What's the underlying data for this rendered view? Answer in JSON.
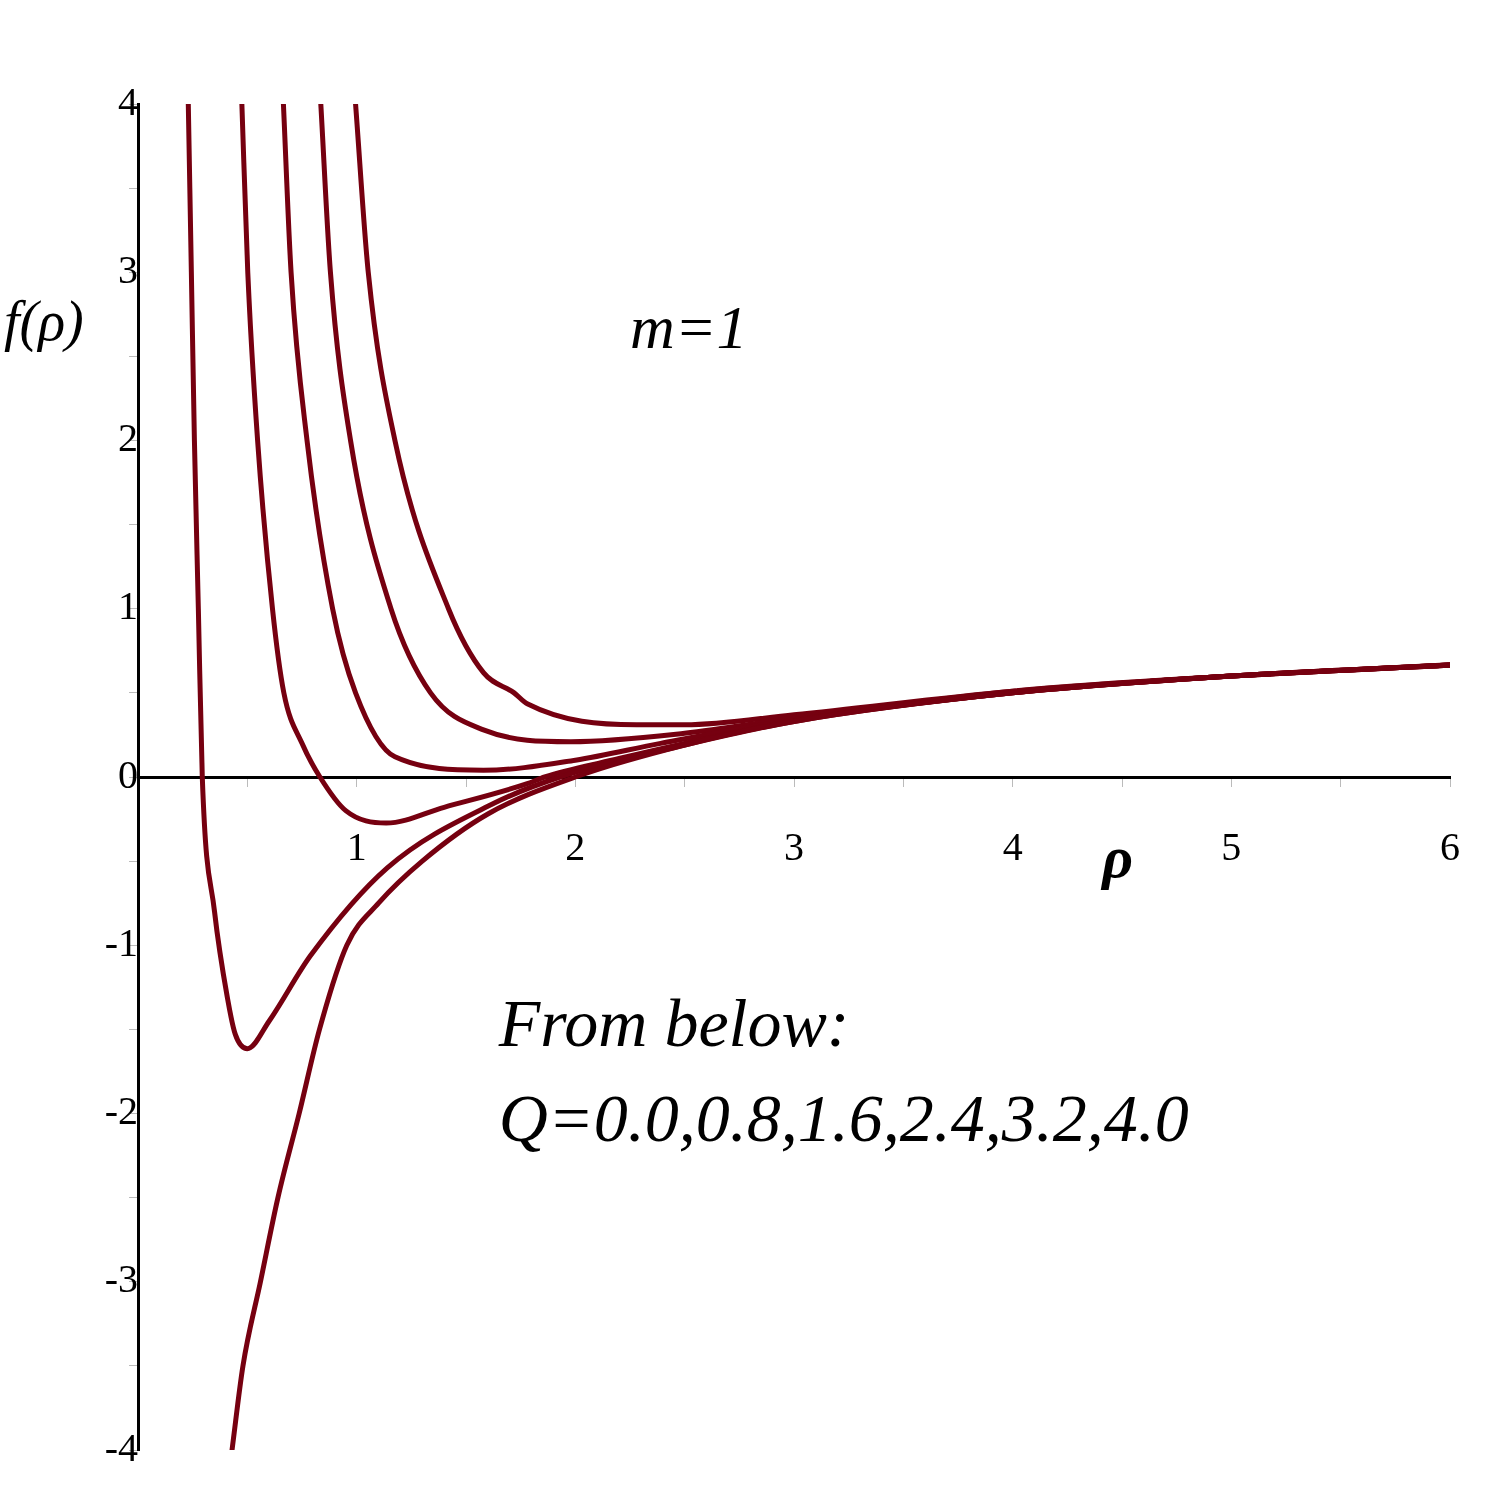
{
  "chart_data": {
    "type": "line",
    "xlabel": "ρ",
    "ylabel": "f(ρ)",
    "annotations": [
      "m=1",
      "From below:",
      "Q=0.0,0.8,1.6,2.4,3.2,4.0"
    ],
    "xlim": [
      0,
      6
    ],
    "ylim": [
      -4,
      4
    ],
    "xticks": [
      {
        "value": 0.5,
        "label": null
      },
      1,
      {
        "value": 1.5,
        "label": null
      },
      2,
      {
        "value": 2.5,
        "label": null
      },
      3,
      {
        "value": 3.5,
        "label": null
      },
      4,
      {
        "value": 4.5,
        "label": null
      },
      5,
      {
        "value": 5.5,
        "label": null
      },
      6
    ],
    "yticks": [
      -4,
      {
        "value": -3.5,
        "label": null
      },
      -3,
      {
        "value": -2.5,
        "label": null
      },
      -2,
      {
        "value": -1.5,
        "label": null
      },
      -1,
      {
        "value": -0.5,
        "label": null
      },
      0,
      {
        "value": 0.5,
        "label": null
      },
      1,
      {
        "value": 1.5,
        "label": null
      },
      2,
      {
        "value": 2.5,
        "label": null
      },
      3,
      {
        "value": 3.5,
        "label": null
      },
      4
    ],
    "grid": false,
    "legend": false,
    "marker": "none",
    "line_style": "solid",
    "series": [
      {
        "color": "#760010",
        "x": [
          0.43,
          0.48,
          0.56,
          0.64,
          0.737,
          0.83,
          0.955,
          1.1,
          1.3,
          1.6,
          2.0,
          2.5,
          3,
          4,
          5,
          6
        ],
        "values": [
          -4,
          -3.5,
          -3,
          -2.5,
          -2,
          -1.5,
          -1,
          -0.75,
          -0.5,
          -0.22,
          0,
          0.19,
          0.33,
          0.5,
          0.6,
          0.664
        ]
      },
      {
        "color": "#760010",
        "x": [
          0.23,
          0.244,
          0.258,
          0.276,
          0.294,
          0.35,
          0.41,
          0.445,
          0.5,
          0.6,
          0.79,
          1.14,
          1.63,
          1.93,
          2.5,
          3,
          4,
          5,
          6
        ],
        "values": [
          4,
          3,
          2,
          1,
          0,
          -0.8,
          -1.32,
          -1.53,
          -1.615,
          -1.45,
          -1.06,
          -0.54,
          -0.155,
          0,
          0.19,
          0.33,
          0.5,
          0.6,
          0.664
        ]
      },
      {
        "color": "#760010",
        "x": [
          0.475,
          0.502,
          0.547,
          0.615,
          0.667,
          0.75,
          0.832,
          0.95,
          1.135,
          1.4,
          1.78,
          1.86,
          2.2,
          2.5,
          3,
          4,
          5,
          6
        ],
        "values": [
          4,
          3,
          2,
          1,
          0.5,
          0.2,
          0,
          -0.2,
          -0.274,
          -0.18,
          -0.04,
          0,
          0.11,
          0.2,
          0.335,
          0.5,
          0.6,
          0.665
        ]
      },
      {
        "color": "#760010",
        "x": [
          0.665,
          0.7,
          0.773,
          0.89,
          0.995,
          1.175,
          1.58,
          2.0,
          2.39,
          3,
          4,
          5,
          6
        ],
        "values": [
          4,
          3,
          2,
          1,
          0.5,
          0.12,
          0.04,
          0.1,
          0.2,
          0.34,
          0.5,
          0.6,
          0.665
        ]
      },
      {
        "color": "#760010",
        "x": [
          0.836,
          0.88,
          0.972,
          1.157,
          1.338,
          1.58,
          1.98,
          2.5,
          3,
          4,
          5,
          6
        ],
        "values": [
          4,
          3,
          2,
          1,
          0.5,
          0.28,
          0.21,
          0.26,
          0.35,
          0.51,
          0.6,
          0.666
        ]
      },
      {
        "color": "#760010",
        "x": [
          0.995,
          1.053,
          1.175,
          1.42,
          1.58,
          1.72,
          1.78,
          2.28,
          2.5,
          3,
          4,
          5,
          6
        ],
        "values": [
          4,
          3,
          2,
          1,
          0.62,
          0.5,
          0.435,
          0.31,
          0.31,
          0.37,
          0.51,
          0.6,
          0.667
        ]
      }
    ]
  }
}
